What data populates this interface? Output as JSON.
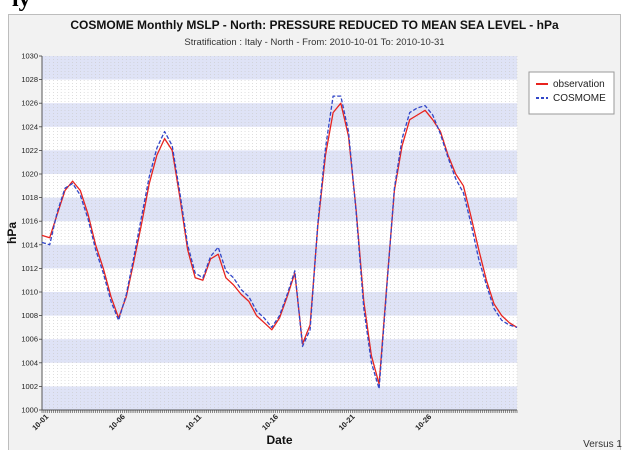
{
  "clipped_heading": "ly",
  "chart_data": {
    "type": "line",
    "title": "COSMOME Monthly MSLP - North: PRESSURE REDUCED TO MEAN SEA LEVEL  - hPa",
    "subtitle": "Stratification : Italy - North - From: 2010-10-01 To: 2010-10-31",
    "xlabel": "Date",
    "ylabel": "hPa",
    "ylim": [
      1000,
      1030
    ],
    "yticks": [
      "1000",
      "1002",
      "1004",
      "1006",
      "1008",
      "1010",
      "1012",
      "1014",
      "1016",
      "1018",
      "1020",
      "1022",
      "1024",
      "1026",
      "1028",
      "1030"
    ],
    "xlim": [
      1,
      32
    ],
    "xticks": [
      {
        "label": "10-01",
        "x": 1
      },
      {
        "label": "10-06",
        "x": 6
      },
      {
        "label": "10-11",
        "x": 11
      },
      {
        "label": "10-16",
        "x": 16
      },
      {
        "label": "10-21",
        "x": 21
      },
      {
        "label": "10-26",
        "x": 26
      }
    ],
    "grid": true,
    "legend_position": "top-right",
    "footer": "Versus 1",
    "x": [
      1,
      1.5,
      2,
      2.5,
      3,
      3.5,
      4,
      4.5,
      5,
      5.5,
      6,
      6.5,
      7,
      7.5,
      8,
      8.5,
      9,
      9.5,
      10,
      10.5,
      11,
      11.5,
      12,
      12.5,
      13,
      13.5,
      14,
      14.5,
      15,
      15.5,
      16,
      16.5,
      17,
      17.5,
      18,
      18.5,
      19,
      19.5,
      20,
      20.5,
      21,
      21.5,
      22,
      22.5,
      23,
      23.5,
      24,
      24.5,
      25,
      25.5,
      26,
      26.5,
      27,
      27.5,
      28,
      28.5,
      29,
      29.5,
      30,
      30.5,
      31,
      31.5,
      32
    ],
    "series": [
      {
        "name": "observation",
        "color": "#e8231e",
        "dash": "solid",
        "values": [
          1014.8,
          1014.6,
          1016.6,
          1018.6,
          1019.4,
          1018.6,
          1016.6,
          1014.0,
          1012.0,
          1009.6,
          1007.8,
          1009.6,
          1012.6,
          1015.8,
          1019.2,
          1021.6,
          1023.0,
          1022.0,
          1018.0,
          1013.6,
          1011.2,
          1011.0,
          1012.8,
          1013.2,
          1011.2,
          1010.6,
          1009.8,
          1009.2,
          1008.0,
          1007.4,
          1006.8,
          1007.8,
          1009.6,
          1011.6,
          1005.6,
          1007.2,
          1015.6,
          1021.6,
          1025.2,
          1026.0,
          1023.2,
          1017.0,
          1009.2,
          1004.6,
          1002.2,
          1010.6,
          1018.6,
          1022.4,
          1024.6,
          1025.0,
          1025.4,
          1024.6,
          1023.6,
          1021.6,
          1020.0,
          1019.0,
          1016.4,
          1013.6,
          1011.0,
          1009.0,
          1008.0,
          1007.4,
          1007.0
        ]
      },
      {
        "name": "COSMOME",
        "color": "#3146c8",
        "dash": "dashed",
        "values": [
          1014.2,
          1014.0,
          1016.8,
          1018.8,
          1019.2,
          1018.2,
          1016.2,
          1013.6,
          1011.6,
          1009.2,
          1007.6,
          1009.8,
          1013.0,
          1016.4,
          1019.8,
          1022.2,
          1023.6,
          1022.4,
          1018.4,
          1014.0,
          1011.6,
          1011.2,
          1013.0,
          1013.8,
          1011.8,
          1011.2,
          1010.2,
          1009.6,
          1008.4,
          1007.8,
          1007.0,
          1008.0,
          1009.8,
          1011.8,
          1005.4,
          1006.8,
          1015.8,
          1022.2,
          1026.6,
          1026.6,
          1023.6,
          1016.8,
          1008.6,
          1004.0,
          1001.8,
          1010.4,
          1018.8,
          1023.0,
          1025.2,
          1025.6,
          1025.8,
          1025.0,
          1023.4,
          1021.4,
          1019.6,
          1018.4,
          1015.8,
          1012.8,
          1010.6,
          1008.6,
          1007.6,
          1007.2,
          1007.0
        ]
      }
    ]
  }
}
